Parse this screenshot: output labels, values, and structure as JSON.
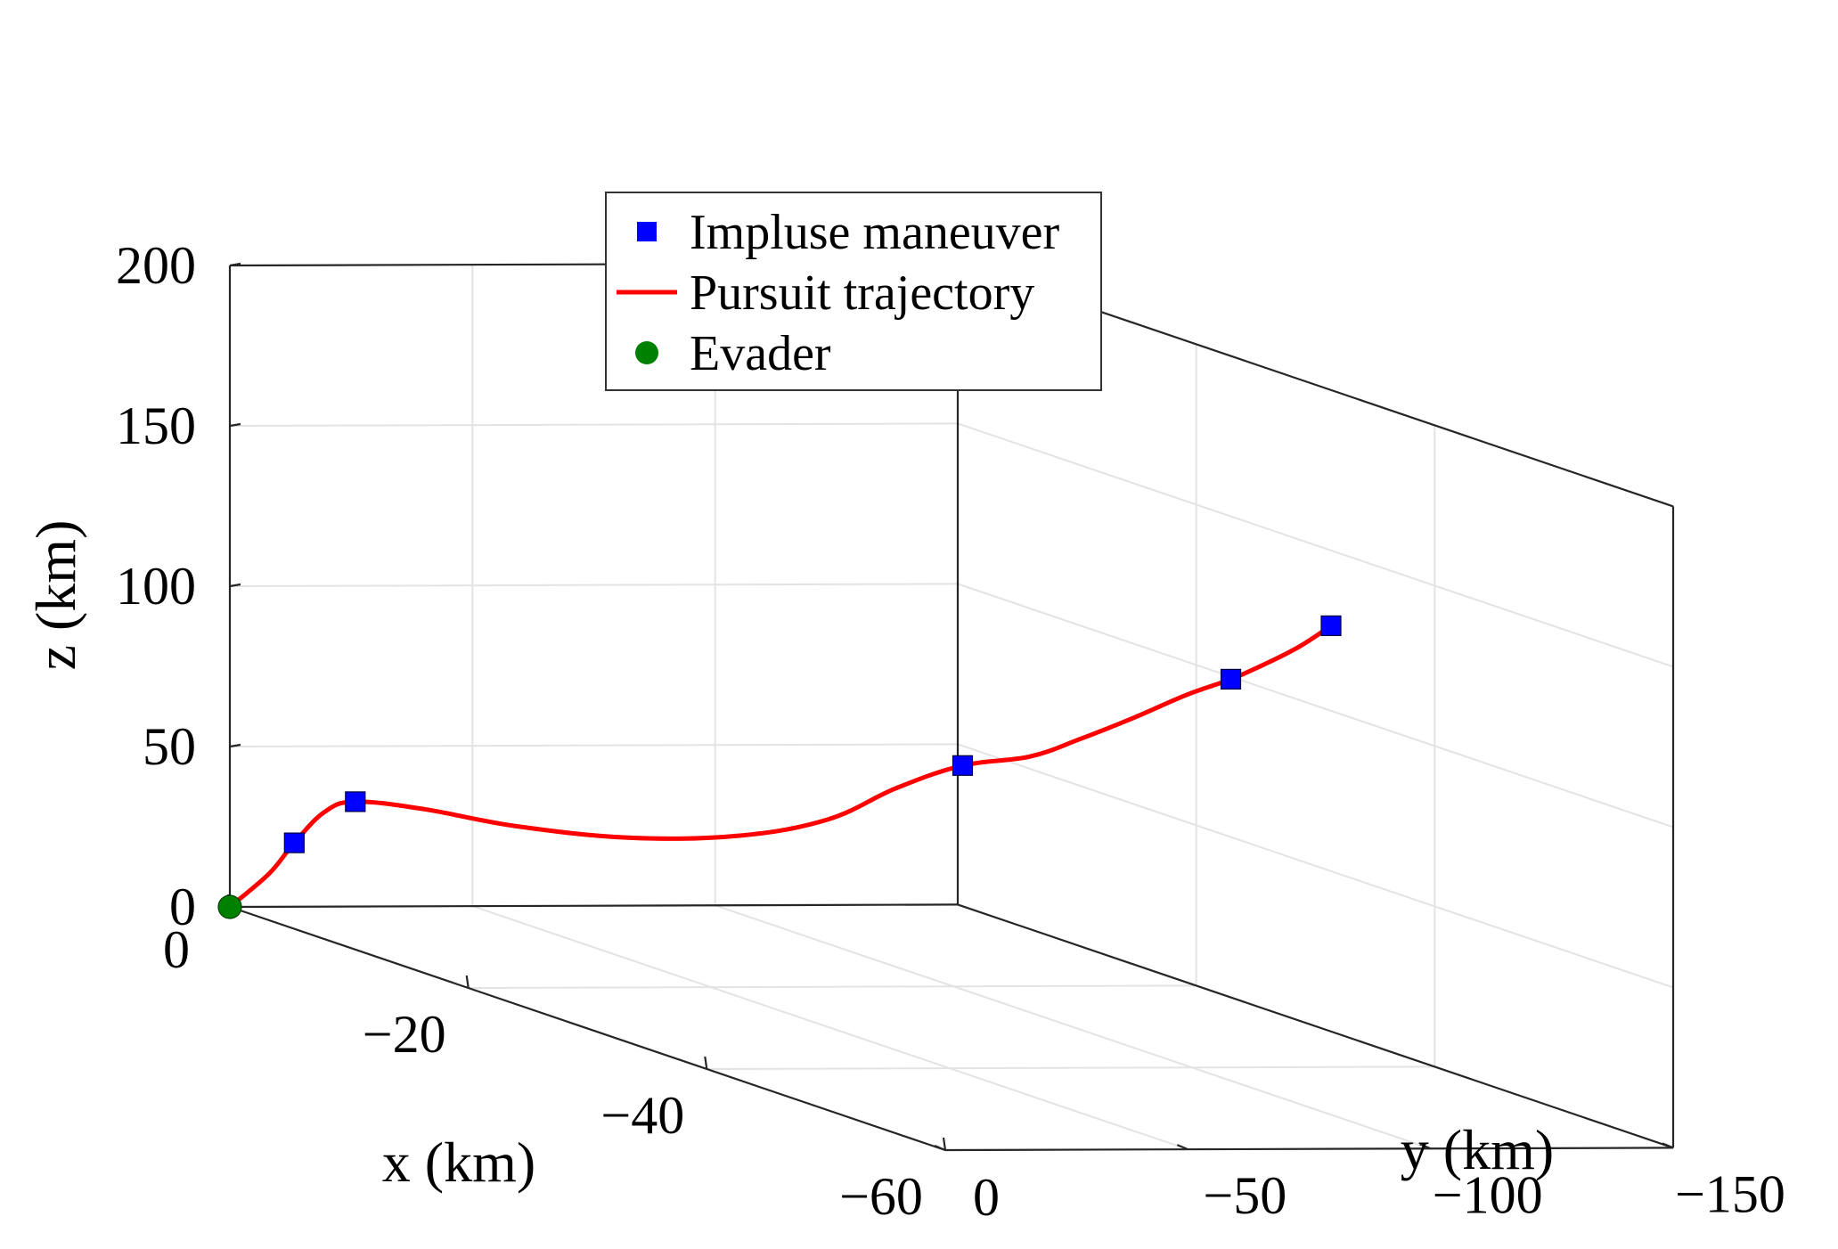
{
  "chart_data": {
    "type": "line3d",
    "title": "",
    "xlabel": "x (km)",
    "ylabel": "y (km)",
    "zlabel": "z (km)",
    "xlim": [
      -60,
      0
    ],
    "ylim": [
      -150,
      0
    ],
    "zlim": [
      0,
      200
    ],
    "grid": true,
    "x_ticks": [
      {
        "value": 0,
        "label": "0"
      },
      {
        "value": -20,
        "label": "−20"
      },
      {
        "value": -40,
        "label": "−40"
      },
      {
        "value": -60,
        "label": "−60"
      }
    ],
    "y_ticks": [
      {
        "value": 0,
        "label": "0"
      },
      {
        "value": -50,
        "label": "−50"
      },
      {
        "value": -100,
        "label": "−100"
      },
      {
        "value": -150,
        "label": "−150"
      }
    ],
    "z_ticks": [
      {
        "value": 0,
        "label": "0"
      },
      {
        "value": 50,
        "label": "50"
      },
      {
        "value": 100,
        "label": "100"
      },
      {
        "value": 150,
        "label": "150"
      },
      {
        "value": 200,
        "label": "200"
      }
    ],
    "legend": {
      "placement": "top-center",
      "entries": [
        {
          "key": "impulse",
          "label": "Impluse maneuver",
          "marker": "square",
          "color": "#0000ff"
        },
        {
          "key": "pursuit",
          "label": "Pursuit trajectory",
          "marker": "line",
          "color": "#ff0000"
        },
        {
          "key": "evader",
          "label": "Evader",
          "marker": "circle",
          "color": "#008000"
        }
      ]
    },
    "series": [
      {
        "name": "Pursuit trajectory",
        "key": "pursuit",
        "color": "#ff0000",
        "points": [
          {
            "x": 0,
            "y": 0,
            "z": 0
          },
          {
            "x": -3.3,
            "y": 0,
            "z": 14.6
          },
          {
            "x": -5.4,
            "y": 0,
            "z": 26.8
          },
          {
            "x": -7.4,
            "y": -1.3,
            "z": 38.9
          },
          {
            "x": -9.5,
            "y": -2.5,
            "z": 44.8
          },
          {
            "x": -13,
            "y": -8,
            "z": 46.9
          },
          {
            "x": -17.5,
            "y": -16,
            "z": 47.2
          },
          {
            "x": -23,
            "y": -26,
            "z": 50.5
          },
          {
            "x": -28,
            "y": -36,
            "z": 57.4
          },
          {
            "x": -31.8,
            "y": -45,
            "z": 67.2
          },
          {
            "x": -33.5,
            "y": -55,
            "z": 79.1
          },
          {
            "x": -35,
            "y": -65,
            "z": 88
          },
          {
            "x": -36.5,
            "y": -75,
            "z": 92.6
          },
          {
            "x": -37.5,
            "y": -83,
            "z": 99.3
          },
          {
            "x": -38.5,
            "y": -92,
            "z": 107.4
          },
          {
            "x": -39.5,
            "y": -100,
            "z": 115.5
          },
          {
            "x": -40.2,
            "y": -107.5,
            "z": 121.3
          },
          {
            "x": -41,
            "y": -113,
            "z": 127.3
          },
          {
            "x": -41.8,
            "y": -118,
            "z": 133.7
          },
          {
            "x": -42.5,
            "y": -122.5,
            "z": 140.8
          }
        ]
      },
      {
        "name": "Impluse maneuver",
        "key": "impulse",
        "color": "#0000ff",
        "points": [
          {
            "x": -5.4,
            "y": 0,
            "z": 26.8
          },
          {
            "x": -9.5,
            "y": -2.5,
            "z": 44.8
          },
          {
            "x": -35,
            "y": -65,
            "z": 88
          },
          {
            "x": -40.2,
            "y": -107.5,
            "z": 121.3
          },
          {
            "x": -42.5,
            "y": -122.5,
            "z": 140.8
          }
        ]
      },
      {
        "name": "Evader",
        "key": "evader",
        "color": "#008000",
        "points": [
          {
            "x": 0,
            "y": 0,
            "z": 0
          }
        ]
      }
    ]
  }
}
